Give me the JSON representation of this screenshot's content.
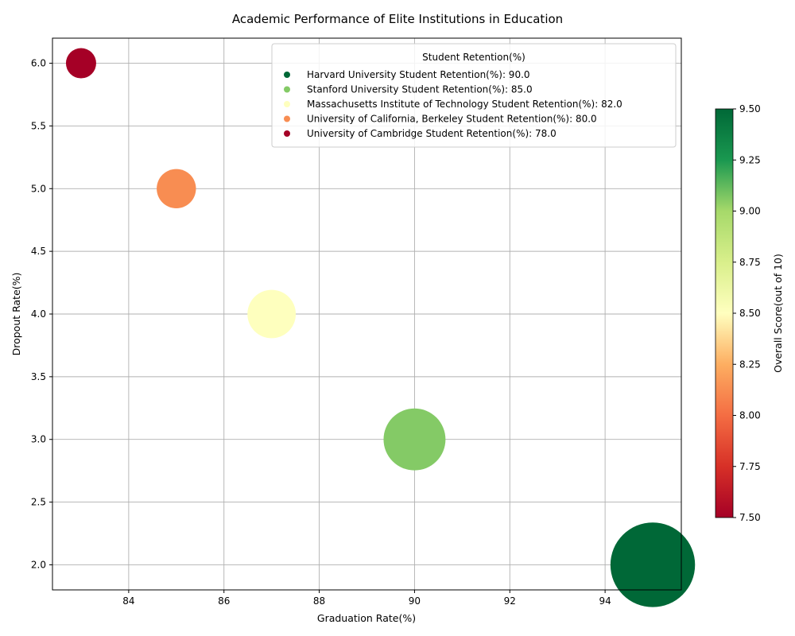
{
  "chart_data": {
    "type": "scatter",
    "title": "Academic Performance of Elite Institutions in Education",
    "xlabel": "Graduation Rate(%)",
    "ylabel": "Dropout Rate(%)",
    "xlim": [
      82.4,
      95.6
    ],
    "ylim": [
      1.8,
      6.2
    ],
    "xticks": [
      84,
      86,
      88,
      90,
      92,
      94
    ],
    "yticks": [
      2.0,
      2.5,
      3.0,
      3.5,
      4.0,
      4.5,
      5.0,
      5.5,
      6.0
    ],
    "grid": true,
    "legend_title": "Student Retention(%)",
    "legend_position": "top-right",
    "colorbar_label": "Overall Score(out of 10)",
    "colorbar_range": [
      7.5,
      9.5
    ],
    "colorbar_ticks": [
      "7.50",
      "7.75",
      "8.00",
      "8.25",
      "8.50",
      "8.75",
      "9.00",
      "9.25",
      "9.50"
    ],
    "points": [
      {
        "name": "Harvard University",
        "graduation_rate": 95,
        "dropout_rate": 2,
        "retention": 90.0,
        "score": 9.5,
        "color": "#006837",
        "legend": "Harvard University Student Retention(%): 90.0"
      },
      {
        "name": "Stanford University",
        "graduation_rate": 90,
        "dropout_rate": 3,
        "retention": 85.0,
        "score": 9.0,
        "color": "#84ca66",
        "legend": "Stanford University Student Retention(%): 85.0"
      },
      {
        "name": "Massachusetts Institute of Technology",
        "graduation_rate": 87,
        "dropout_rate": 4,
        "retention": 82.0,
        "score": 8.5,
        "color": "#feffbe",
        "legend": "Massachusetts Institute of Technology Student Retention(%): 82.0"
      },
      {
        "name": "University of California, Berkeley",
        "graduation_rate": 85,
        "dropout_rate": 5,
        "retention": 80.0,
        "score": 8.0,
        "color": "#f88d52",
        "legend": "University of California, Berkeley Student Retention(%): 80.0"
      },
      {
        "name": "University of Cambridge",
        "graduation_rate": 83,
        "dropout_rate": 6,
        "retention": 78.0,
        "score": 7.5,
        "color": "#a50026",
        "legend": "University of Cambridge Student Retention(%): 78.0"
      }
    ]
  }
}
